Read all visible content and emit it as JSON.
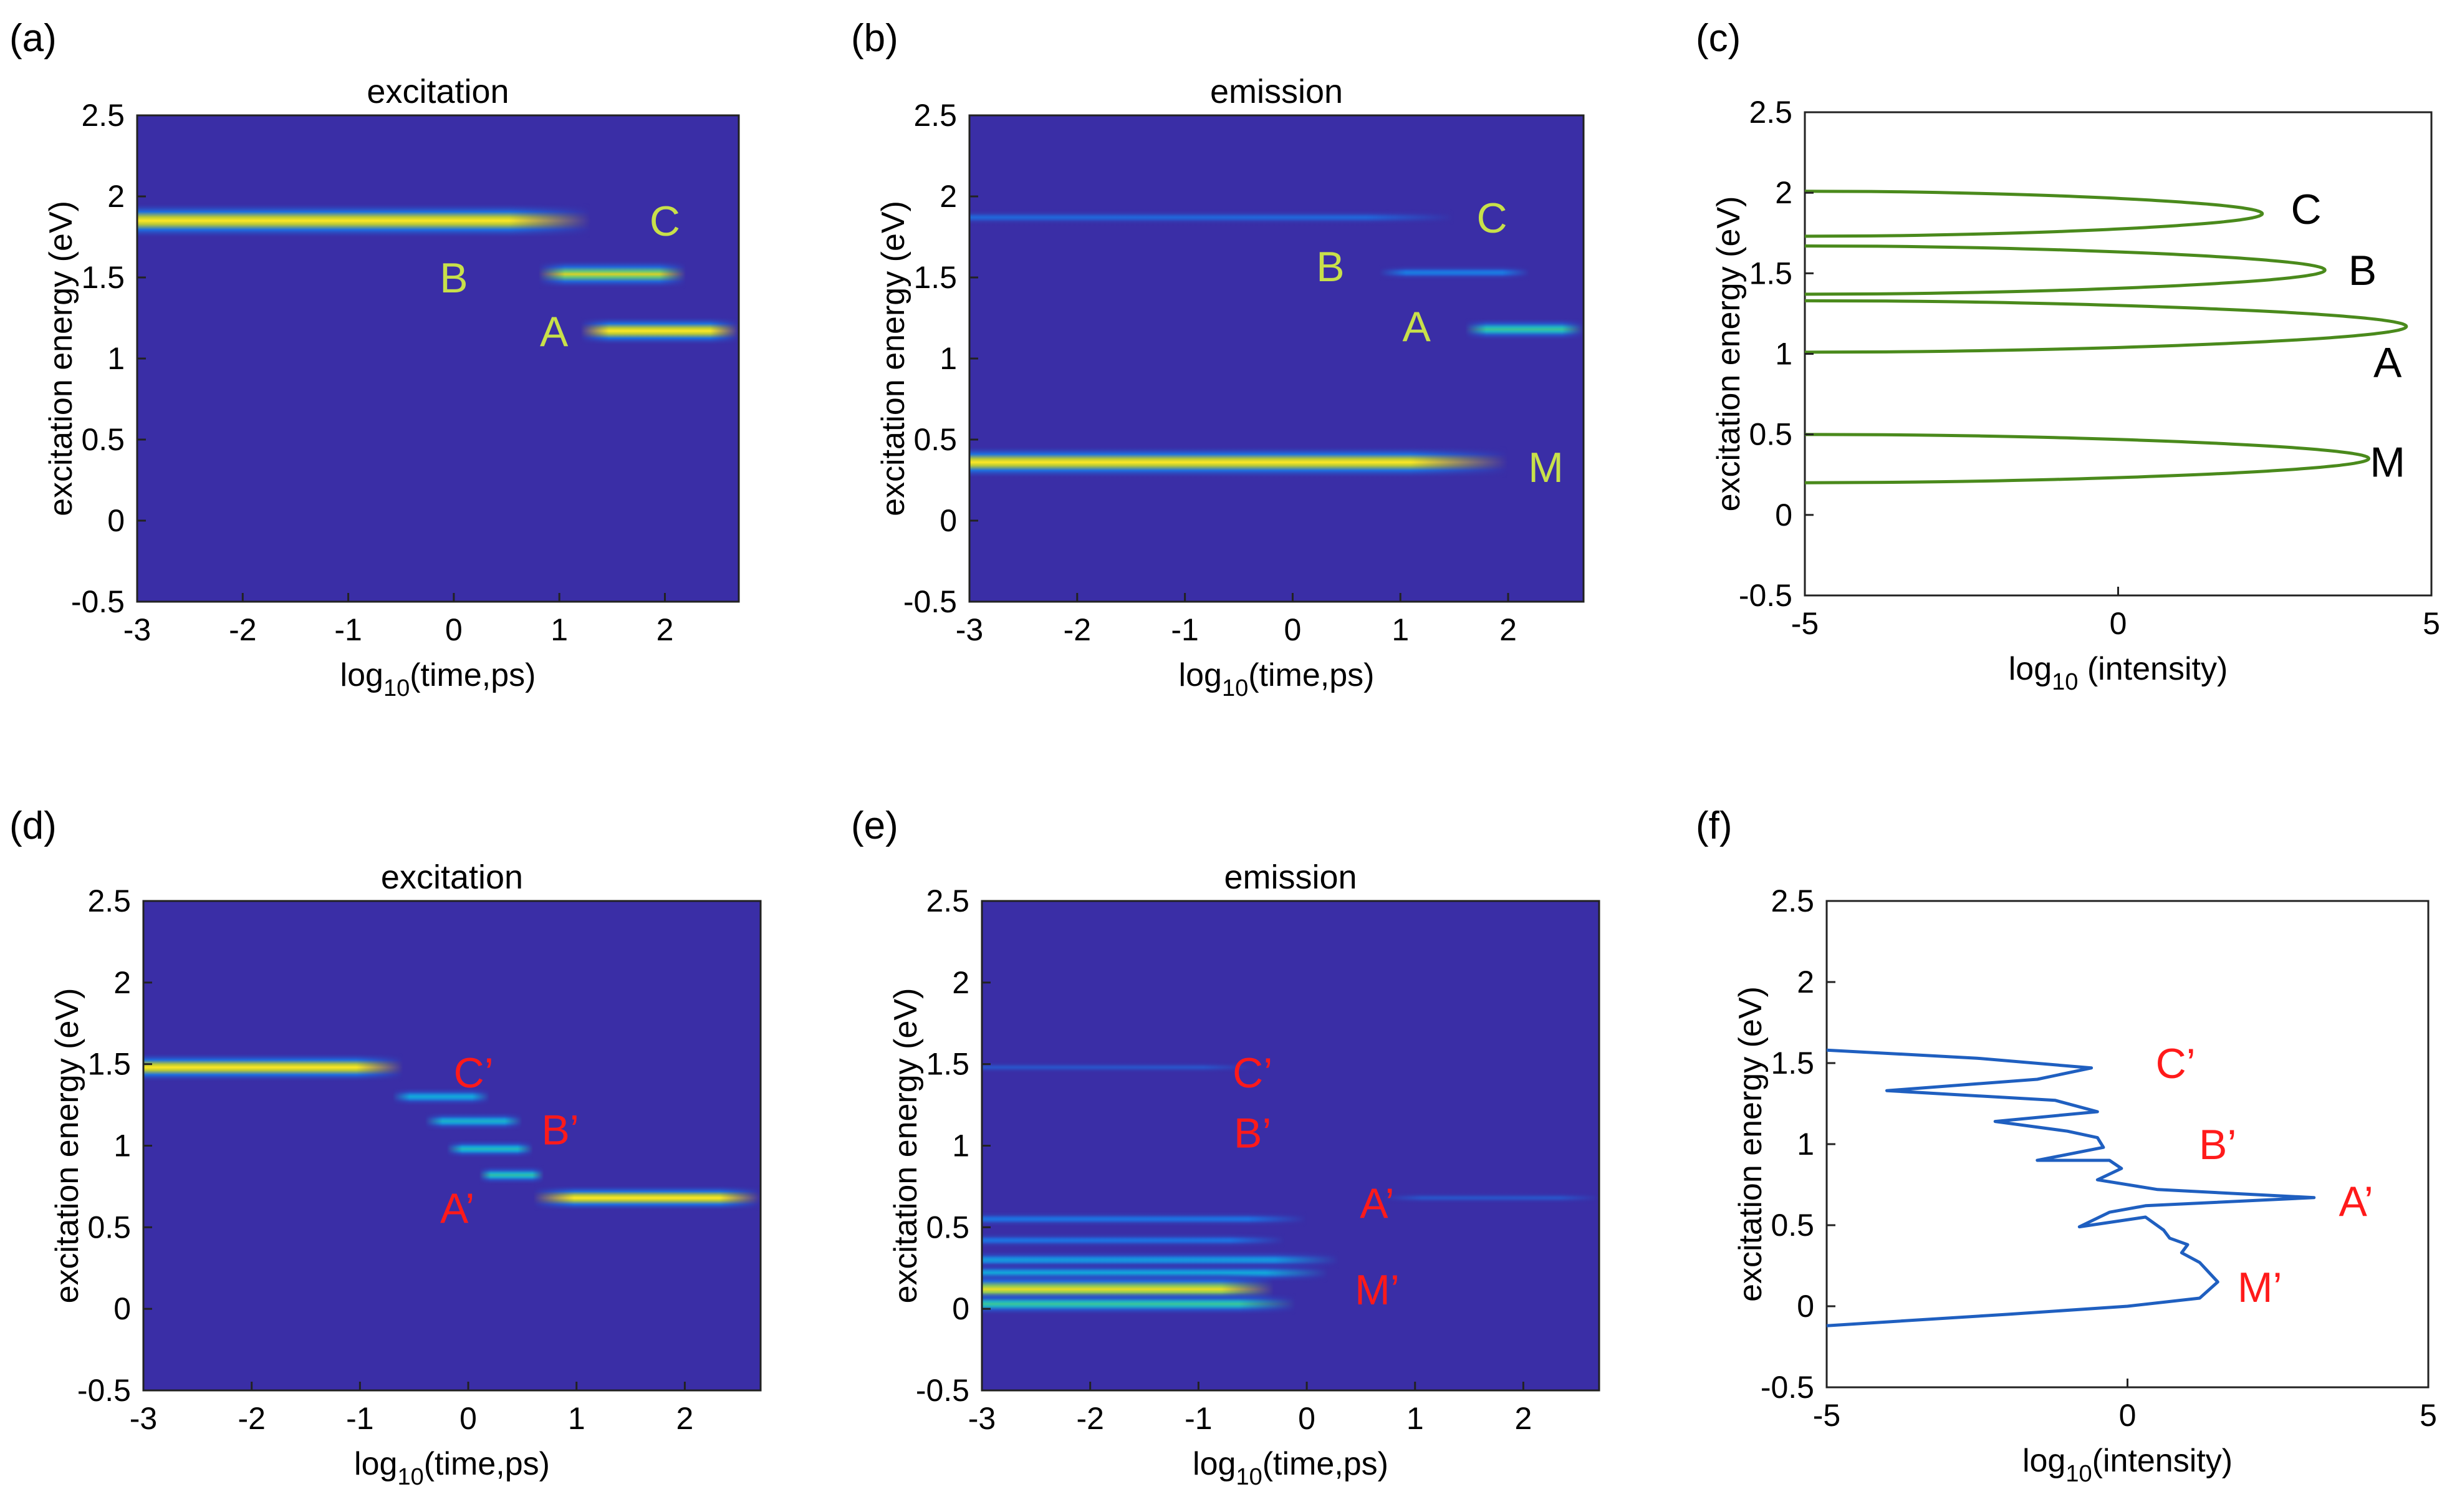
{
  "colors": {
    "heatmap_bg": "#3a2ea6",
    "annotation_top": "#c8e04a",
    "annotation_bottom": "#ff1a1a",
    "curve_top": "#4a8a1c",
    "curve_bottom": "#1f5fc0",
    "label_top_spectrum": "#000000"
  },
  "chart_data": [
    {
      "id": "a",
      "panel_label": "(a)",
      "type": "heatmap",
      "title": "excitation",
      "xlabel_base": "log",
      "xlabel_sub": "10",
      "xlabel_rest": "(time,ps)",
      "ylabel": "excitation energy (eV)",
      "xlim": [
        -3,
        2.7
      ],
      "ylim": [
        -0.5,
        2.5
      ],
      "xticks": [
        "-3",
        "-2",
        "-1",
        "0",
        "1",
        "2"
      ],
      "yticks": [
        "-0.5",
        "0",
        "0.5",
        "1",
        "1.5",
        "2",
        "2.5"
      ],
      "bands": [
        {
          "y": 1.85,
          "x_start": -3,
          "x_end": 1.3,
          "intensity": 1.0,
          "ythick": 0.11
        },
        {
          "y": 1.52,
          "x_start": 0.8,
          "x_end": 2.2,
          "intensity": 0.85,
          "ythick": 0.09
        },
        {
          "y": 1.17,
          "x_start": 1.2,
          "x_end": 2.7,
          "intensity": 1.0,
          "ythick": 0.09
        }
      ],
      "annotations": [
        {
          "text": "C",
          "x": 2.0,
          "y": 1.85
        },
        {
          "text": "B",
          "x": 0.0,
          "y": 1.5
        },
        {
          "text": "A",
          "x": 0.95,
          "y": 1.17
        }
      ]
    },
    {
      "id": "b",
      "panel_label": "(b)",
      "type": "heatmap",
      "title": "emission",
      "xlabel_base": "log",
      "xlabel_sub": "10",
      "xlabel_rest": "(time,ps)",
      "ylabel": "excitation energy (eV)",
      "xlim": [
        -3,
        2.7
      ],
      "ylim": [
        -0.5,
        2.5
      ],
      "xticks": [
        "-3",
        "-2",
        "-1",
        "0",
        "1",
        "2"
      ],
      "yticks": [
        "-0.5",
        "0",
        "0.5",
        "1",
        "1.5",
        "2",
        "2.5"
      ],
      "bands": [
        {
          "y": 1.87,
          "x_start": -3,
          "x_end": 1.5,
          "intensity": 0.18,
          "ythick": 0.05
        },
        {
          "y": 1.53,
          "x_start": 0.8,
          "x_end": 2.2,
          "intensity": 0.25,
          "ythick": 0.05
        },
        {
          "y": 1.18,
          "x_start": 1.6,
          "x_end": 2.7,
          "intensity": 0.6,
          "ythick": 0.07
        },
        {
          "y": 0.36,
          "x_start": -3,
          "x_end": 2.0,
          "intensity": 1.0,
          "ythick": 0.1
        }
      ],
      "annotations": [
        {
          "text": "C",
          "x": 1.85,
          "y": 1.87
        },
        {
          "text": "B",
          "x": 0.35,
          "y": 1.57
        },
        {
          "text": "A",
          "x": 1.15,
          "y": 1.2
        },
        {
          "text": "M",
          "x": 2.35,
          "y": 0.33
        }
      ]
    },
    {
      "id": "c",
      "panel_label": "(c)",
      "type": "line",
      "xlabel_base": "log",
      "xlabel_sub": "10",
      "xlabel_rest": " (intensity)",
      "ylabel": "excitation energy (eV)",
      "xlim": [
        -5,
        5
      ],
      "ylim": [
        -0.5,
        2.5
      ],
      "xticks": [
        "-5",
        "0",
        "5"
      ],
      "yticks": [
        "-0.5",
        "0",
        "0.5",
        "1",
        "1.5",
        "2",
        "2.5"
      ],
      "peaks": [
        {
          "center": 0.35,
          "peak": 4.0,
          "halfwidth": 0.15
        },
        {
          "center": 1.17,
          "peak": 4.6,
          "halfwidth": 0.16
        },
        {
          "center": 1.52,
          "peak": 3.3,
          "halfwidth": 0.15
        },
        {
          "center": 1.87,
          "peak": 2.3,
          "halfwidth": 0.14
        }
      ],
      "annotations": [
        {
          "text": "C",
          "x": 3.0,
          "y": 1.9
        },
        {
          "text": "B",
          "x": 3.9,
          "y": 1.52
        },
        {
          "text": "A",
          "x": 4.3,
          "y": 0.95
        },
        {
          "text": "M",
          "x": 4.3,
          "y": 0.33
        }
      ]
    },
    {
      "id": "d",
      "panel_label": "(d)",
      "type": "heatmap",
      "title": "excitation",
      "xlabel_base": "log",
      "xlabel_sub": "10",
      "xlabel_rest": "(time,ps)",
      "ylabel": "excitation energy (eV)",
      "xlim": [
        -3,
        2.7
      ],
      "ylim": [
        -0.5,
        2.5
      ],
      "xticks": [
        "-3",
        "-2",
        "-1",
        "0",
        "1",
        "2"
      ],
      "yticks": [
        "-0.5",
        "0",
        "0.5",
        "1",
        "1.5",
        "2",
        "2.5"
      ],
      "bands": [
        {
          "y": 1.48,
          "x_start": -3,
          "x_end": -0.6,
          "intensity": 1.0,
          "ythick": 0.09
        },
        {
          "y": 1.3,
          "x_start": -0.7,
          "x_end": 0.2,
          "intensity": 0.4,
          "ythick": 0.06
        },
        {
          "y": 1.15,
          "x_start": -0.4,
          "x_end": 0.5,
          "intensity": 0.45,
          "ythick": 0.06
        },
        {
          "y": 0.98,
          "x_start": -0.2,
          "x_end": 0.6,
          "intensity": 0.5,
          "ythick": 0.06
        },
        {
          "y": 0.82,
          "x_start": 0.1,
          "x_end": 0.7,
          "intensity": 0.55,
          "ythick": 0.06
        },
        {
          "y": 0.68,
          "x_start": 0.6,
          "x_end": 2.7,
          "intensity": 1.0,
          "ythick": 0.08
        }
      ],
      "annotations": [
        {
          "text": "C’",
          "x": 0.05,
          "y": 1.45
        },
        {
          "text": "B’",
          "x": 0.85,
          "y": 1.1
        },
        {
          "text": "A’",
          "x": -0.1,
          "y": 0.62
        }
      ]
    },
    {
      "id": "e",
      "panel_label": "(e)",
      "type": "heatmap",
      "title": "emission",
      "xlabel_base": "log",
      "xlabel_sub": "10",
      "xlabel_rest": "(time,ps)",
      "ylabel": "excitation energy (eV)",
      "xlim": [
        -3,
        2.7
      ],
      "ylim": [
        -0.5,
        2.5
      ],
      "xticks": [
        "-3",
        "-2",
        "-1",
        "0",
        "1",
        "2"
      ],
      "yticks": [
        "-0.5",
        "0",
        "0.5",
        "1",
        "1.5",
        "2",
        "2.5"
      ],
      "bands": [
        {
          "y": 1.48,
          "x_start": -3,
          "x_end": -0.5,
          "intensity": 0.12,
          "ythick": 0.04
        },
        {
          "y": 0.68,
          "x_start": 0.7,
          "x_end": 2.7,
          "intensity": 0.12,
          "ythick": 0.04
        },
        {
          "y": 0.55,
          "x_start": -3,
          "x_end": 0.0,
          "intensity": 0.22,
          "ythick": 0.05
        },
        {
          "y": 0.42,
          "x_start": -3,
          "x_end": -0.2,
          "intensity": 0.22,
          "ythick": 0.05
        },
        {
          "y": 0.3,
          "x_start": -3,
          "x_end": 0.3,
          "intensity": 0.35,
          "ythick": 0.06
        },
        {
          "y": 0.22,
          "x_start": -3,
          "x_end": 0.2,
          "intensity": 0.4,
          "ythick": 0.06
        },
        {
          "y": 0.12,
          "x_start": -3,
          "x_end": -0.3,
          "intensity": 0.92,
          "ythick": 0.1
        },
        {
          "y": 0.03,
          "x_start": -3,
          "x_end": -0.1,
          "intensity": 0.6,
          "ythick": 0.07
        }
      ],
      "annotations": [
        {
          "text": "C’",
          "x": -0.5,
          "y": 1.45
        },
        {
          "text": "B’",
          "x": -0.5,
          "y": 1.08
        },
        {
          "text": "A’",
          "x": 0.65,
          "y": 0.65
        },
        {
          "text": "M’",
          "x": 0.65,
          "y": 0.12
        }
      ]
    },
    {
      "id": "f",
      "panel_label": "(f)",
      "type": "line",
      "xlabel_base": "log",
      "xlabel_sub": "10",
      "xlabel_rest": "(intensity)",
      "ylabel": "excitation energy (eV)",
      "xlim": [
        -5,
        5
      ],
      "ylim": [
        -0.5,
        2.5
      ],
      "xticks": [
        "-5",
        "0",
        "5"
      ],
      "yticks": [
        "-0.5",
        "0",
        "0.5",
        "1",
        "1.5",
        "2",
        "2.5"
      ],
      "points": [
        {
          "x": -5.0,
          "y": -0.12
        },
        {
          "x": -2.0,
          "y": -0.05
        },
        {
          "x": 0.0,
          "y": 0.0
        },
        {
          "x": 1.2,
          "y": 0.05
        },
        {
          "x": 1.5,
          "y": 0.15
        },
        {
          "x": 1.2,
          "y": 0.27
        },
        {
          "x": 0.9,
          "y": 0.33
        },
        {
          "x": 1.0,
          "y": 0.38
        },
        {
          "x": 0.7,
          "y": 0.42
        },
        {
          "x": 0.6,
          "y": 0.47
        },
        {
          "x": 0.3,
          "y": 0.55
        },
        {
          "x": -0.8,
          "y": 0.49
        },
        {
          "x": -0.3,
          "y": 0.58
        },
        {
          "x": 0.3,
          "y": 0.62
        },
        {
          "x": 3.1,
          "y": 0.67
        },
        {
          "x": 0.5,
          "y": 0.72
        },
        {
          "x": -0.5,
          "y": 0.78
        },
        {
          "x": -0.1,
          "y": 0.85
        },
        {
          "x": -0.3,
          "y": 0.9
        },
        {
          "x": -1.5,
          "y": 0.9
        },
        {
          "x": -0.4,
          "y": 0.98
        },
        {
          "x": -0.5,
          "y": 1.04
        },
        {
          "x": -1.0,
          "y": 1.08
        },
        {
          "x": -2.2,
          "y": 1.14
        },
        {
          "x": -0.5,
          "y": 1.2
        },
        {
          "x": -1.2,
          "y": 1.27
        },
        {
          "x": -4.0,
          "y": 1.33
        },
        {
          "x": -1.5,
          "y": 1.4
        },
        {
          "x": -0.6,
          "y": 1.47
        },
        {
          "x": -2.5,
          "y": 1.53
        },
        {
          "x": -5.0,
          "y": 1.58
        }
      ],
      "annotations": [
        {
          "text": "C’",
          "x": 0.8,
          "y": 1.5
        },
        {
          "text": "B’",
          "x": 1.5,
          "y": 1.0
        },
        {
          "text": "A’",
          "x": 3.8,
          "y": 0.65
        },
        {
          "text": "M’",
          "x": 2.2,
          "y": 0.12
        }
      ]
    }
  ]
}
